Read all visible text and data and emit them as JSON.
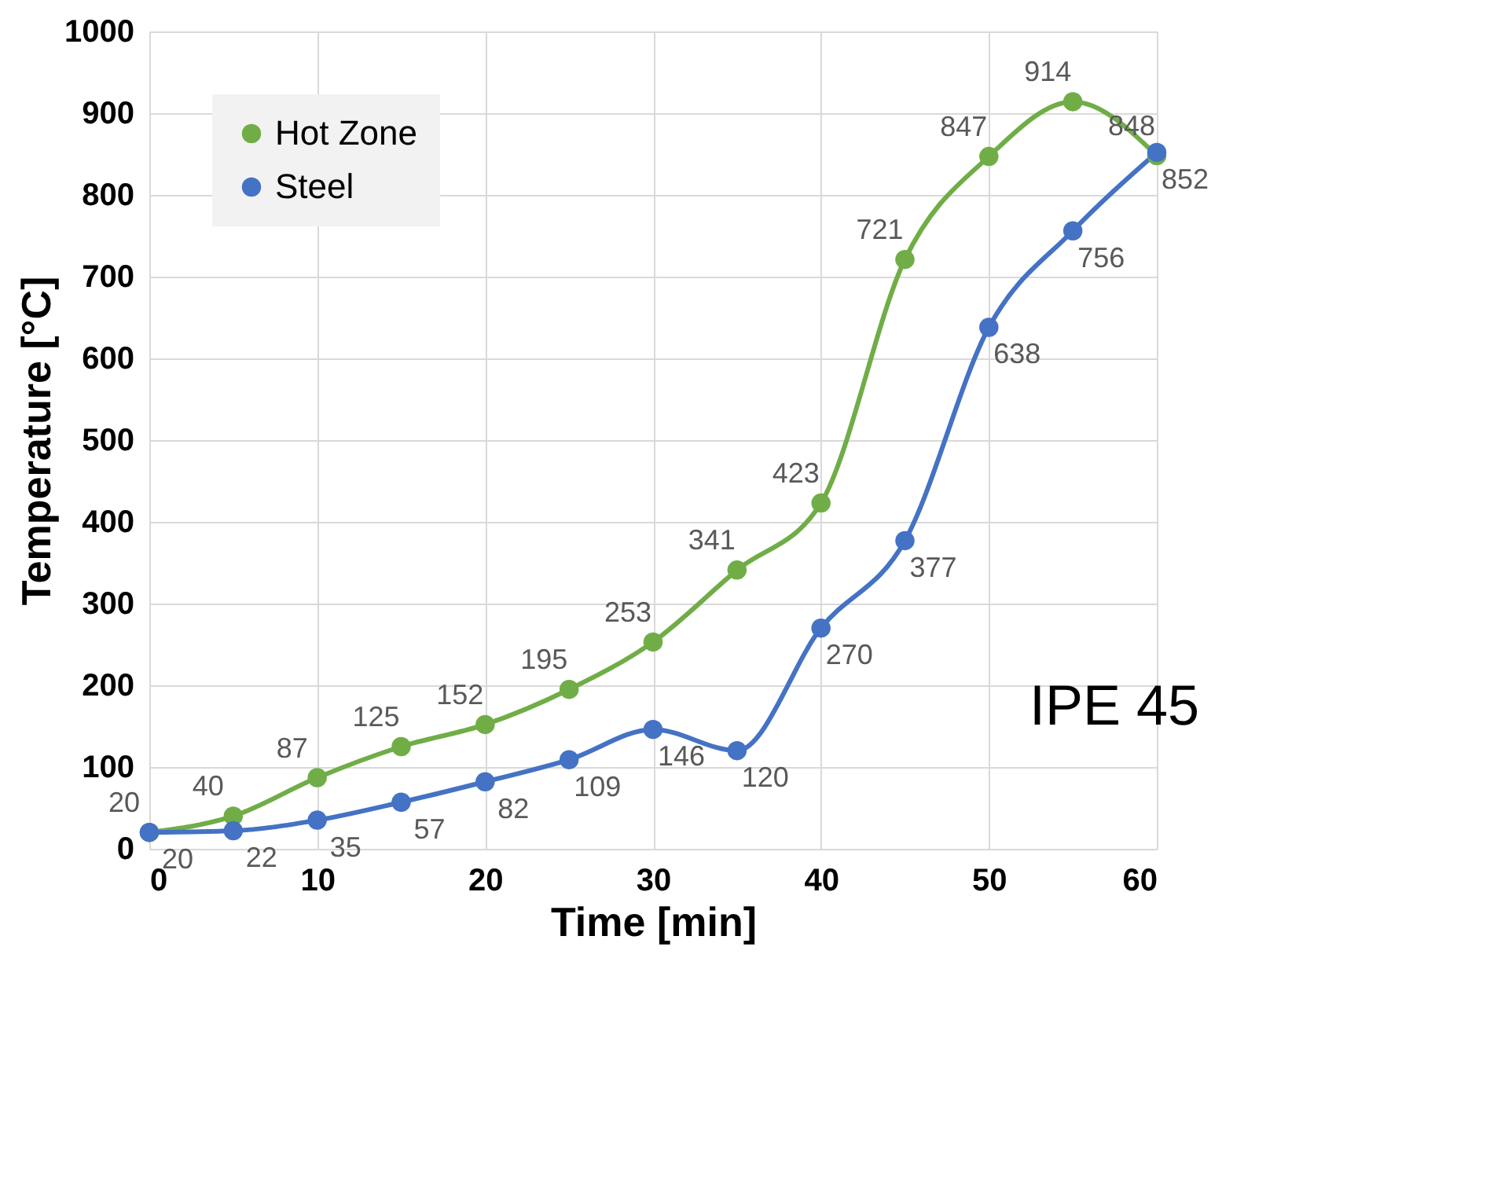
{
  "chart_data": {
    "type": "line",
    "xlabel": "Time [min]",
    "ylabel": "Temperature [°C]",
    "x": [
      0,
      5,
      10,
      15,
      20,
      25,
      30,
      35,
      40,
      45,
      50,
      55,
      60
    ],
    "series": [
      {
        "name": "Hot Zone",
        "color": "#70ad47",
        "values": [
          20,
          40,
          87,
          125,
          152,
          195,
          253,
          341,
          423,
          721,
          847,
          914,
          848
        ]
      },
      {
        "name": "Steel",
        "color": "#4472c4",
        "values": [
          20,
          22,
          35,
          57,
          82,
          109,
          146,
          120,
          270,
          377,
          638,
          756,
          852
        ]
      }
    ],
    "xlim": [
      0,
      60
    ],
    "xticks": [
      0,
      10,
      20,
      30,
      40,
      50,
      60
    ],
    "ylim": [
      0,
      1000
    ],
    "yticks": [
      0,
      100,
      200,
      300,
      400,
      500,
      600,
      700,
      800,
      900,
      1000
    ],
    "grid": true,
    "legend": "top left",
    "marker": "circle",
    "line_style": "solid",
    "data_labels": true,
    "annotations": [
      "IPE 45"
    ]
  }
}
